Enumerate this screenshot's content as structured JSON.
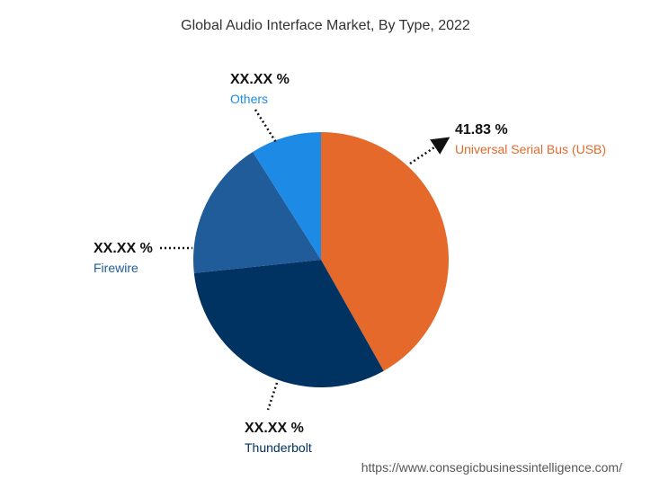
{
  "colors": {
    "usb": "#E4692A",
    "thunderbolt": "#003262",
    "firewire": "#1F5C99",
    "others": "#1D8BE6"
  },
  "chart_data": {
    "type": "pie",
    "title": "Global Audio Interface Market, By Type, 2022",
    "slices": [
      {
        "key": "usb",
        "label": "Universal Serial Bus (USB)",
        "value_text": "41.83 %",
        "value": 41.83
      },
      {
        "key": "thunderbolt",
        "label": "Thunderbolt",
        "value_text": "XX.XX %",
        "value": 31.5
      },
      {
        "key": "firewire",
        "label": "Firewire",
        "value_text": "XX.XX %",
        "value": 17.7
      },
      {
        "key": "others",
        "label": "Others",
        "value_text": "XX.XX %",
        "value": 8.97
      }
    ]
  },
  "footer": {
    "source_url": "https://www.consegicbusinessintelligence.com/"
  }
}
